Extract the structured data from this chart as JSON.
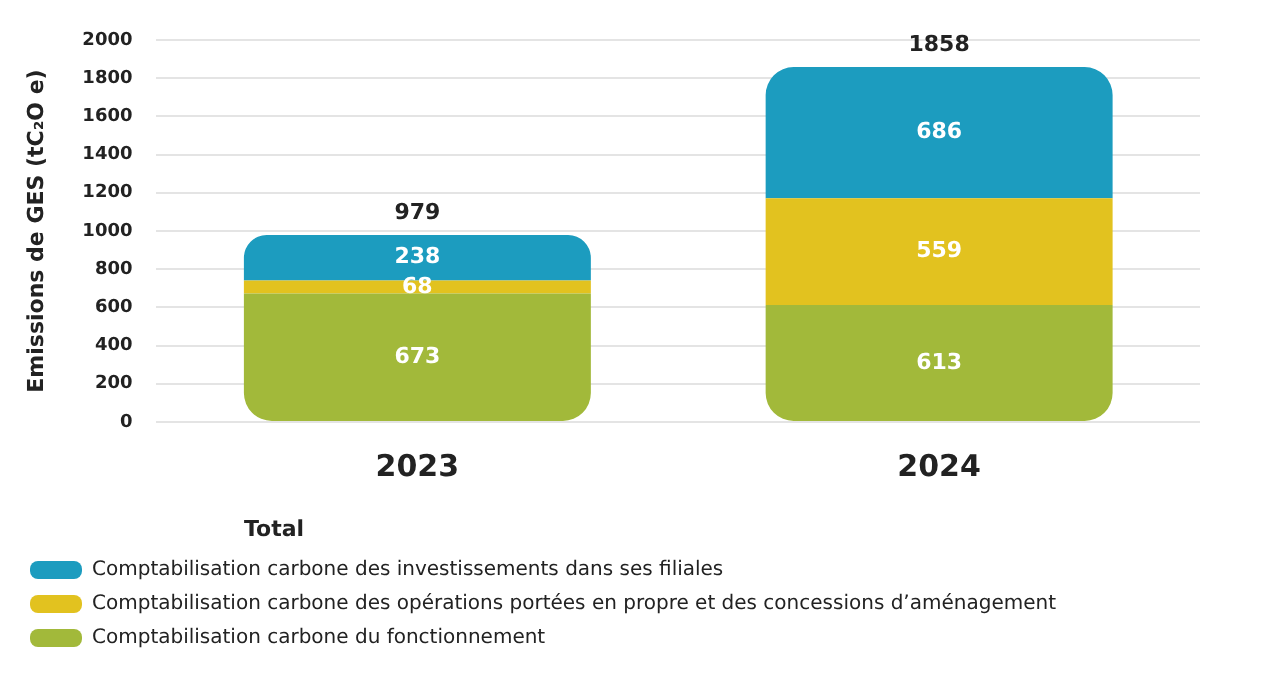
{
  "chart_data": {
    "type": "bar",
    "stacked": true,
    "ylabel": "Emissions de GES (tC₂O e)",
    "categories": [
      "2023",
      "2024"
    ],
    "series": [
      {
        "name": "Comptabilisation carbone du fonctionnement",
        "color": "#a2b93a",
        "values": [
          673,
          613
        ]
      },
      {
        "name": "Comptabilisation carbone des opérations portées en propre et des concessions d’aménagement",
        "color": "#e2c21f",
        "values": [
          68,
          559
        ]
      },
      {
        "name": "Comptabilisation carbone des investissements dans ses filiales",
        "color": "#1c9cbf",
        "values": [
          238,
          686
        ]
      }
    ],
    "totals": [
      "979",
      "1858"
    ],
    "data_labels": true,
    "ylim": [
      0,
      2000
    ],
    "yticks": [
      0,
      200,
      400,
      600,
      800,
      1000,
      1200,
      1400,
      1600,
      1800,
      2000
    ],
    "grid": "y",
    "legend": "bottom",
    "annotations": [
      "Total"
    ]
  }
}
